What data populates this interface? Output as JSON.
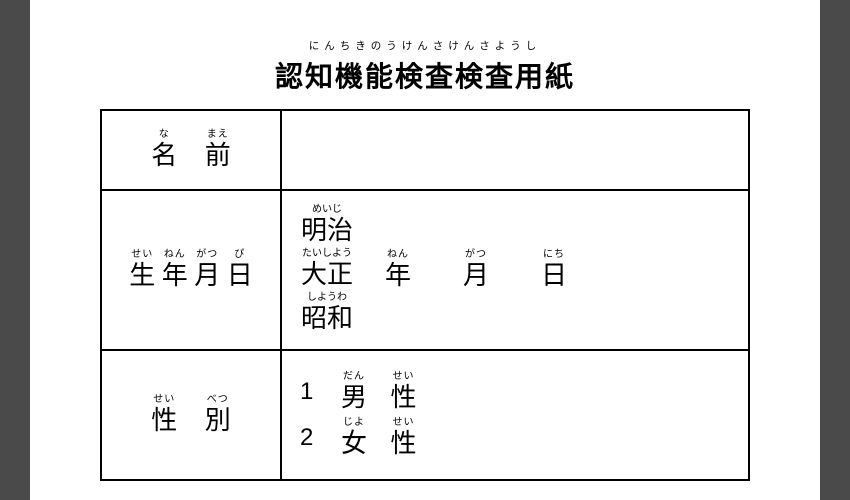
{
  "title": {
    "ruby": "にんちきのうけんさけんさようし",
    "text": "認知機能検査検査用紙"
  },
  "rows": {
    "name": {
      "label": {
        "chars": [
          {
            "rt": "な",
            "rb": "名"
          },
          {
            "rt": "まえ",
            "rb": "前"
          }
        ]
      }
    },
    "dob": {
      "label": {
        "chars": [
          {
            "rt": "せい",
            "rb": "生"
          },
          {
            "rt": "ねん",
            "rb": "年"
          },
          {
            "rt": "がつ",
            "rb": "月"
          },
          {
            "rt": "ぴ",
            "rb": "日"
          }
        ]
      },
      "eras": [
        {
          "rt": "めいじ",
          "rb": "明治"
        },
        {
          "rt": "たいしよう",
          "rb": "大正"
        },
        {
          "rt": "しようわ",
          "rb": "昭和"
        }
      ],
      "units": [
        {
          "rt": "ねん",
          "rb": "年"
        },
        {
          "rt": "がつ",
          "rb": "月"
        },
        {
          "rt": "にち",
          "rb": "日"
        }
      ]
    },
    "gender": {
      "label": {
        "chars": [
          {
            "rt": "せい",
            "rb": "性"
          },
          {
            "rt": "べつ",
            "rb": "別"
          }
        ]
      },
      "options": [
        {
          "num": "1",
          "chars": [
            {
              "rt": "だん",
              "rb": "男"
            },
            {
              "rt": "せい",
              "rb": "性"
            }
          ]
        },
        {
          "num": "2",
          "chars": [
            {
              "rt": "じよ",
              "rb": "女"
            },
            {
              "rt": "せい",
              "rb": "性"
            }
          ]
        }
      ]
    }
  },
  "colors": {
    "page_bg": "#ffffff",
    "outer_bg": "#4a4a4a",
    "text": "#000000",
    "border": "#000000"
  }
}
